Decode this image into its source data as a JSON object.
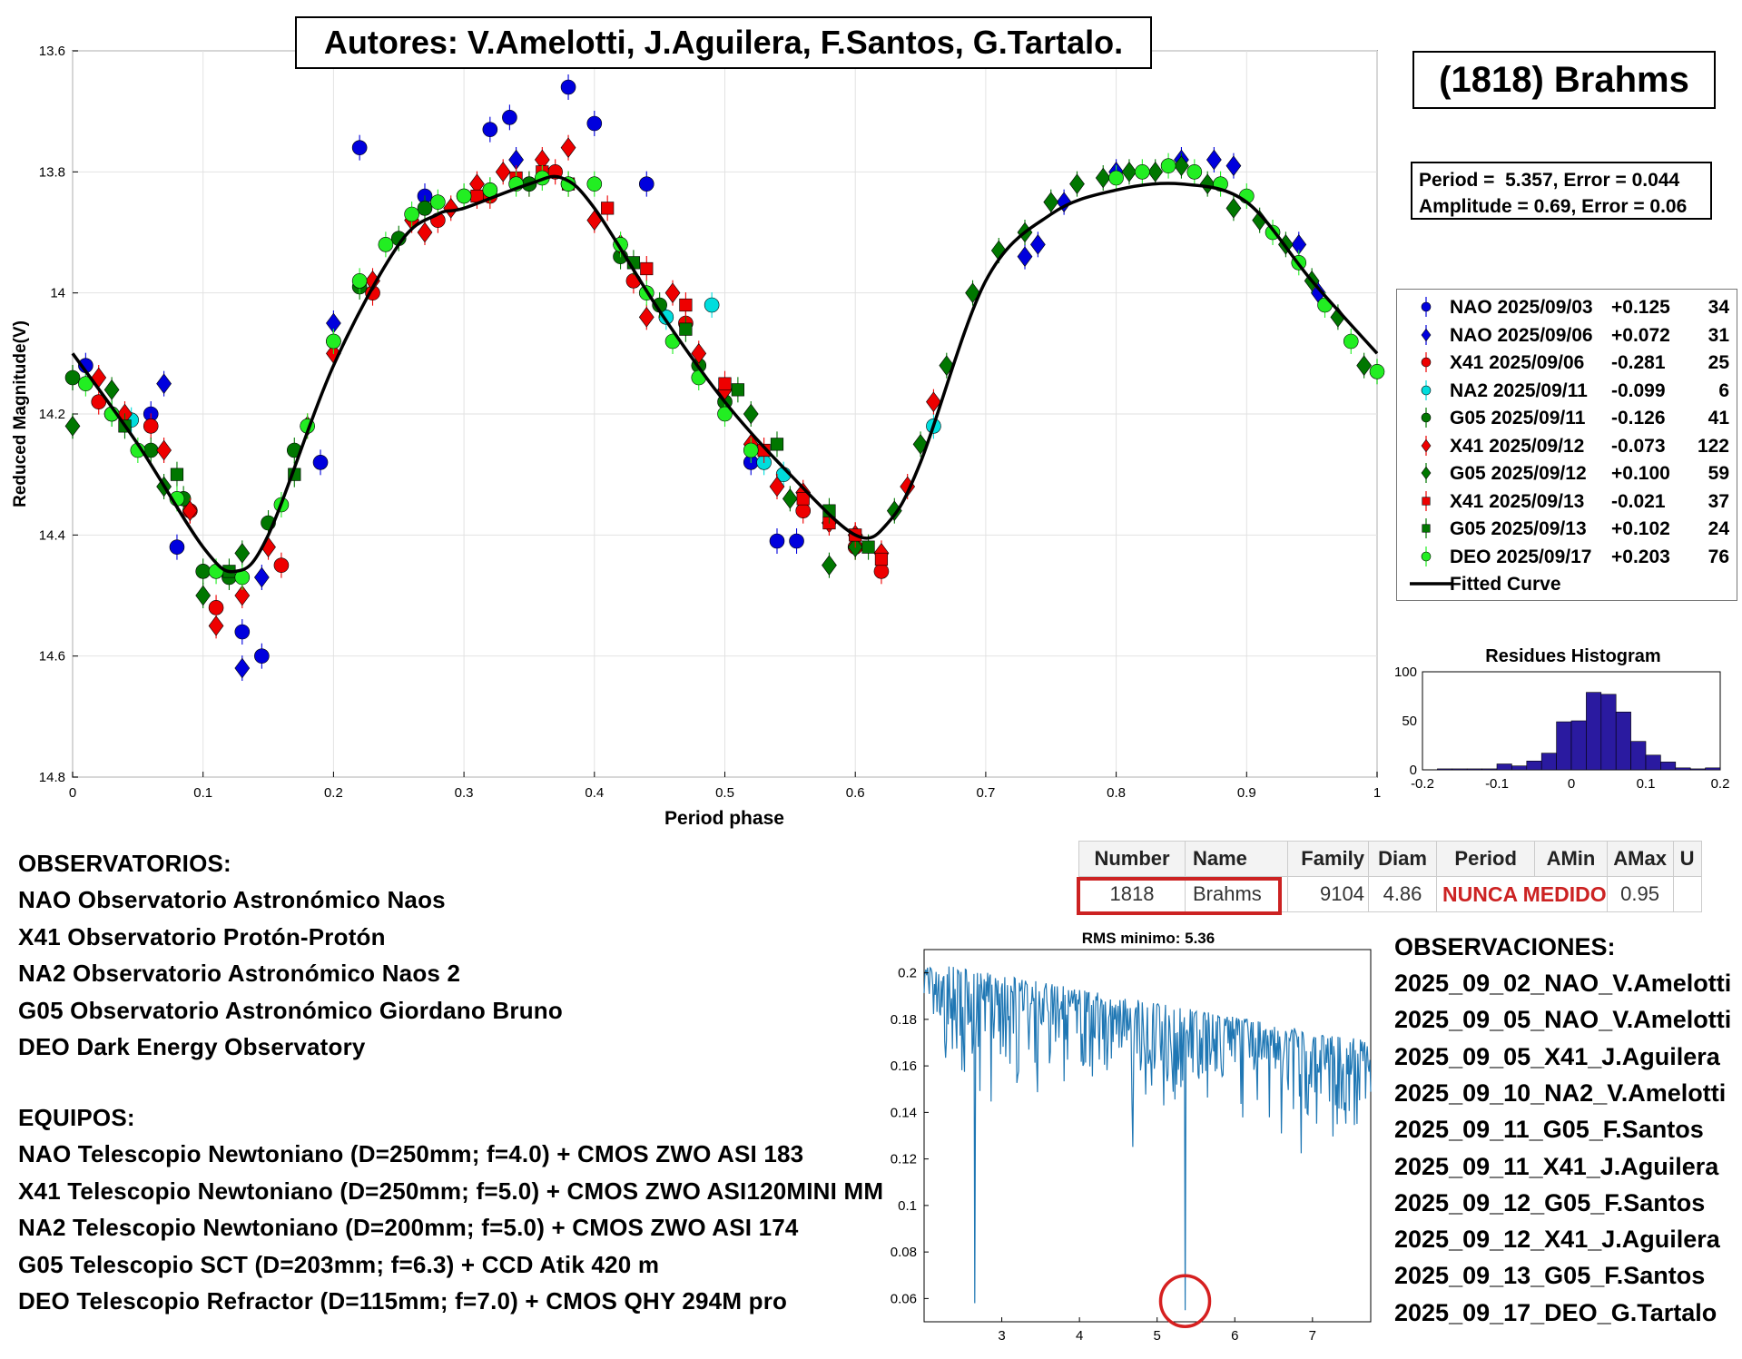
{
  "authors": "Autores: V.Amelotti, J.Aguilera, F.Santos, G.Tartalo.",
  "asteroid_title": "(1818) Brahms",
  "period_line": "Period =  5.357, Error = 0.044",
  "amplitude_line": "Amplitude = 0.69, Error = 0.06",
  "colors": {
    "blue": "#0000dd",
    "red": "#ee0000",
    "cyan": "#00dddd",
    "dark_green": "#007700",
    "light_green": "#22ee22",
    "curve": "#000000",
    "hist_bar": "#2a1aa0",
    "periodogram": "#1f77b4",
    "highlight": "#cc2222"
  },
  "legend": [
    {
      "label": "NAO 2025/09/03",
      "offset": "+0.125",
      "count": "34",
      "color": "#0000dd",
      "marker": "circle"
    },
    {
      "label": "NAO 2025/09/06",
      "offset": "+0.072",
      "count": "31",
      "color": "#0000dd",
      "marker": "diamond"
    },
    {
      "label": "X41 2025/09/06",
      "offset": "-0.281",
      "count": "25",
      "color": "#ee0000",
      "marker": "circle"
    },
    {
      "label": "NA2 2025/09/11",
      "offset": "-0.099",
      "count": "6",
      "color": "#00dddd",
      "marker": "circle"
    },
    {
      "label": "G05 2025/09/11",
      "offset": "-0.126",
      "count": "41",
      "color": "#007700",
      "marker": "circle"
    },
    {
      "label": "X41 2025/09/12",
      "offset": "-0.073",
      "count": "122",
      "color": "#ee0000",
      "marker": "diamond"
    },
    {
      "label": "G05 2025/09/12",
      "offset": "+0.100",
      "count": "59",
      "color": "#007700",
      "marker": "diamond"
    },
    {
      "label": "X41 2025/09/13",
      "offset": "-0.021",
      "count": "37",
      "color": "#ee0000",
      "marker": "square"
    },
    {
      "label": "G05 2025/09/13",
      "offset": "+0.102",
      "count": "24",
      "color": "#007700",
      "marker": "square"
    },
    {
      "label": "DEO 2025/09/17",
      "offset": "+0.203",
      "count": "76",
      "color": "#22ee22",
      "marker": "circle"
    }
  ],
  "legend_fit_label": "Fitted Curve",
  "chart_data": [
    {
      "type": "scatter",
      "xlabel": "Period phase",
      "ylabel": "Reduced Magnitude(V)",
      "xlim": [
        0,
        1
      ],
      "ylim": [
        14.8,
        13.6
      ],
      "y_reversed": true,
      "grid": true,
      "x_ticks": [
        "0",
        "0.1",
        "0.2",
        "0.3",
        "0.4",
        "0.5",
        "0.6",
        "0.7",
        "0.8",
        "0.9",
        "1"
      ],
      "y_ticks": [
        "13.6",
        "13.8",
        "14",
        "14.2",
        "14.4",
        "14.6",
        "14.8"
      ],
      "legend_position": "right",
      "fitted_curve": {
        "name": "Fitted Curve",
        "phase": [
          0.0,
          0.05,
          0.1,
          0.125,
          0.15,
          0.2,
          0.25,
          0.28,
          0.3,
          0.35,
          0.375,
          0.4,
          0.45,
          0.5,
          0.55,
          0.6,
          0.625,
          0.65,
          0.7,
          0.75,
          0.8,
          0.85,
          0.9,
          0.95,
          1.0
        ],
        "magnitude": [
          14.1,
          14.25,
          14.42,
          14.46,
          14.4,
          14.12,
          13.92,
          13.87,
          13.86,
          13.82,
          13.81,
          13.86,
          14.03,
          14.18,
          14.3,
          14.4,
          14.38,
          14.28,
          13.98,
          13.87,
          13.83,
          13.82,
          13.85,
          13.98,
          14.1
        ]
      },
      "series": [
        {
          "name": "NAO 2025/09/03",
          "marker": "circle",
          "color": "#0000dd",
          "phase": [
            0.01,
            0.03,
            0.06,
            0.08,
            0.13,
            0.145,
            0.19,
            0.22,
            0.27,
            0.32,
            0.335,
            0.38,
            0.4,
            0.44,
            0.52,
            0.54,
            0.555
          ],
          "magnitude": [
            14.12,
            14.2,
            14.2,
            14.42,
            14.56,
            14.6,
            14.28,
            13.76,
            13.84,
            13.73,
            13.71,
            13.66,
            13.72,
            13.82,
            14.28,
            14.41,
            14.41
          ]
        },
        {
          "name": "NAO 2025/09/06",
          "marker": "diamond",
          "color": "#0000dd",
          "phase": [
            0.07,
            0.13,
            0.145,
            0.2,
            0.34,
            0.73,
            0.74,
            0.76,
            0.8,
            0.85,
            0.875,
            0.89,
            0.94,
            0.955
          ],
          "magnitude": [
            14.15,
            14.62,
            14.47,
            14.05,
            13.78,
            13.94,
            13.92,
            13.85,
            13.8,
            13.78,
            13.78,
            13.79,
            13.92,
            14.0
          ]
        },
        {
          "name": "X41 2025/09/06",
          "marker": "circle",
          "color": "#ee0000",
          "phase": [
            0.02,
            0.06,
            0.09,
            0.11,
            0.16,
            0.23,
            0.28,
            0.32,
            0.35,
            0.37,
            0.43,
            0.47,
            0.56,
            0.6,
            0.62
          ],
          "magnitude": [
            14.18,
            14.22,
            14.36,
            14.52,
            14.45,
            14.0,
            13.88,
            13.84,
            13.82,
            13.8,
            13.98,
            14.05,
            14.36,
            14.42,
            14.46
          ]
        },
        {
          "name": "NA2 2025/09/11",
          "marker": "circle",
          "color": "#00dddd",
          "phase": [
            0.045,
            0.455,
            0.49,
            0.53,
            0.545,
            0.66
          ],
          "magnitude": [
            14.21,
            14.04,
            14.02,
            14.28,
            14.3,
            14.22
          ]
        },
        {
          "name": "G05 2025/09/11",
          "marker": "circle",
          "color": "#007700",
          "phase": [
            0.0,
            0.03,
            0.06,
            0.085,
            0.1,
            0.12,
            0.15,
            0.17,
            0.2,
            0.22,
            0.25,
            0.27,
            0.3,
            0.32,
            0.35,
            0.38,
            0.42,
            0.45,
            0.48,
            0.5
          ],
          "magnitude": [
            14.14,
            14.2,
            14.26,
            14.34,
            14.46,
            14.47,
            14.38,
            14.26,
            14.08,
            13.99,
            13.91,
            13.86,
            13.84,
            13.83,
            13.82,
            13.82,
            13.94,
            14.02,
            14.12,
            14.18
          ]
        },
        {
          "name": "X41 2025/09/12",
          "marker": "diamond",
          "color": "#ee0000",
          "phase": [
            0.02,
            0.04,
            0.07,
            0.09,
            0.11,
            0.13,
            0.15,
            0.18,
            0.2,
            0.23,
            0.26,
            0.27,
            0.29,
            0.31,
            0.33,
            0.36,
            0.38,
            0.4,
            0.42,
            0.44,
            0.46,
            0.48,
            0.5,
            0.52,
            0.54,
            0.56,
            0.58,
            0.6,
            0.62,
            0.64,
            0.66
          ],
          "magnitude": [
            14.14,
            14.2,
            14.26,
            14.36,
            14.55,
            14.5,
            14.42,
            14.22,
            14.1,
            13.98,
            13.88,
            13.9,
            13.86,
            13.82,
            13.8,
            13.78,
            13.76,
            13.88,
            13.92,
            14.04,
            14.0,
            14.1,
            14.16,
            14.25,
            14.32,
            14.33,
            14.38,
            14.4,
            14.43,
            14.32,
            14.18
          ]
        },
        {
          "name": "G05 2025/09/12",
          "marker": "diamond",
          "color": "#007700",
          "phase": [
            0.0,
            0.03,
            0.07,
            0.1,
            0.13,
            0.52,
            0.55,
            0.58,
            0.6,
            0.63,
            0.65,
            0.67,
            0.69,
            0.71,
            0.73,
            0.75,
            0.77,
            0.79,
            0.81,
            0.83,
            0.85,
            0.87,
            0.89,
            0.91,
            0.93,
            0.95,
            0.97,
            0.99
          ],
          "magnitude": [
            14.22,
            14.16,
            14.32,
            14.5,
            14.43,
            14.2,
            14.34,
            14.45,
            14.42,
            14.36,
            14.25,
            14.12,
            14.0,
            13.93,
            13.9,
            13.85,
            13.82,
            13.81,
            13.8,
            13.8,
            13.79,
            13.82,
            13.86,
            13.88,
            13.92,
            13.98,
            14.04,
            14.12
          ]
        },
        {
          "name": "X41 2025/09/13",
          "marker": "square",
          "color": "#ee0000",
          "phase": [
            0.31,
            0.34,
            0.36,
            0.38,
            0.41,
            0.44,
            0.47,
            0.5,
            0.53,
            0.56,
            0.58,
            0.6,
            0.62
          ],
          "magnitude": [
            13.84,
            13.81,
            13.8,
            13.82,
            13.86,
            13.96,
            14.02,
            14.15,
            14.26,
            14.34,
            14.38,
            14.4,
            14.44
          ]
        },
        {
          "name": "G05 2025/09/13",
          "marker": "square",
          "color": "#007700",
          "phase": [
            0.04,
            0.08,
            0.12,
            0.17,
            0.43,
            0.47,
            0.51,
            0.54,
            0.58,
            0.61
          ],
          "magnitude": [
            14.22,
            14.3,
            14.46,
            14.3,
            13.95,
            14.06,
            14.16,
            14.25,
            14.36,
            14.42
          ]
        },
        {
          "name": "DEO 2025/09/17",
          "marker": "circle",
          "color": "#22ee22",
          "phase": [
            0.01,
            0.03,
            0.05,
            0.08,
            0.11,
            0.13,
            0.16,
            0.18,
            0.2,
            0.22,
            0.24,
            0.26,
            0.28,
            0.3,
            0.32,
            0.34,
            0.36,
            0.38,
            0.4,
            0.42,
            0.44,
            0.46,
            0.48,
            0.5,
            0.52,
            0.8,
            0.82,
            0.84,
            0.86,
            0.88,
            0.9,
            0.92,
            0.94,
            0.96,
            0.98,
            1.0
          ],
          "magnitude": [
            14.15,
            14.2,
            14.26,
            14.34,
            14.46,
            14.47,
            14.35,
            14.22,
            14.08,
            13.98,
            13.92,
            13.87,
            13.85,
            13.84,
            13.83,
            13.82,
            13.81,
            13.82,
            13.82,
            13.92,
            14.0,
            14.08,
            14.14,
            14.2,
            14.26,
            13.81,
            13.8,
            13.79,
            13.8,
            13.82,
            13.84,
            13.9,
            13.95,
            14.02,
            14.08,
            14.13
          ]
        }
      ]
    },
    {
      "type": "bar",
      "title": "Residues Histogram",
      "xlim": [
        -0.2,
        0.2
      ],
      "ylim": [
        0,
        100
      ],
      "x_ticks": [
        "-0.2",
        "-0.1",
        "0",
        "0.1",
        "0.2"
      ],
      "y_ticks": [
        "0",
        "50",
        "100"
      ],
      "bin_centers": [
        -0.19,
        -0.17,
        -0.15,
        -0.13,
        -0.11,
        -0.09,
        -0.07,
        -0.05,
        -0.03,
        -0.01,
        0.01,
        0.03,
        0.05,
        0.07,
        0.09,
        0.11,
        0.13,
        0.15,
        0.17,
        0.19
      ],
      "values": [
        0,
        1,
        1,
        1,
        1,
        6,
        4,
        9,
        17,
        49,
        50,
        79,
        77,
        59,
        29,
        15,
        8,
        2,
        1,
        2
      ]
    },
    {
      "type": "line",
      "title": "RMS minimo: 5.36",
      "xlim": [
        2.0,
        7.75
      ],
      "ylim": [
        0.05,
        0.21
      ],
      "x_ticks": [
        "3",
        "4",
        "5",
        "6",
        "7"
      ],
      "y_ticks": [
        "0.06",
        "0.08",
        "0.1",
        "0.12",
        "0.14",
        "0.16",
        "0.18",
        "0.2"
      ],
      "minimum": {
        "x": 5.36,
        "y": 0.055
      },
      "secondary_dip": {
        "x": 2.65,
        "y": 0.058
      }
    }
  ],
  "observatorios": {
    "title": "OBSERVATORIOS:",
    "lines": [
      "NAO Observatorio Astronómico Naos",
      "X41 Observatorio Protón-Protón",
      "NA2 Observatorio Astronómico Naos 2",
      "G05 Observatorio Astronómico Giordano Bruno",
      "DEO Dark Energy Observatory"
    ]
  },
  "equipos": {
    "title": "EQUIPOS:",
    "lines": [
      "NAO Telescopio Newtoniano (D=250mm; f=4.0) + CMOS ZWO ASI 183",
      "X41 Telescopio Newtoniano (D=250mm; f=5.0) + CMOS ZWO ASI120MINI MM",
      "NA2 Telescopio Newtoniano (D=200mm; f=5.0) + CMOS ZWO ASI 174",
      "G05 Telescopio SCT (D=203mm; f=6.3) + CCD Atik 420 m",
      "DEO Telescopio Refractor (D=115mm; f=7.0) + CMOS QHY 294M pro"
    ]
  },
  "table": {
    "headers": [
      "Number",
      "Name",
      "Family",
      "Diam",
      "Period",
      "AMin",
      "AMax",
      "U"
    ],
    "row": [
      "1818",
      "Brahms",
      "9104",
      "4.86",
      "NUNCA MEDIDO",
      "0.95",
      "",
      ""
    ]
  },
  "observaciones": {
    "title": "OBSERVACIONES:",
    "lines": [
      "2025_09_02_NAO_V.Amelotti",
      "2025_09_05_NAO_V.Amelotti",
      "2025_09_05_X41_J.Aguilera",
      "2025_09_10_NA2_V.Amelotti",
      "2025_09_11_G05_F.Santos",
      "2025_09_11_X41_J.Aguilera",
      "2025_09_12_G05_F.Santos",
      "2025_09_12_X41_J.Aguilera",
      "2025_09_13_G05_F.Santos",
      "2025_09_17_DEO_G.Tartalo"
    ]
  }
}
